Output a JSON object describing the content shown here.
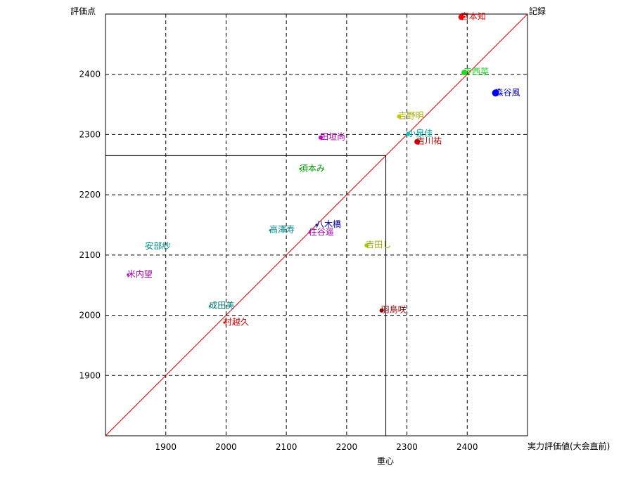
{
  "chart_data": {
    "type": "scatter",
    "ylabel": "評価点",
    "xlabel": "実力評価値(大会直前)",
    "diagonal_label": "記録",
    "center_label": "重心",
    "xlim": [
      1800,
      2500
    ],
    "ylim": [
      1800,
      2500
    ],
    "x_ticks": [
      1900,
      2000,
      2100,
      2200,
      2300,
      2400
    ],
    "y_ticks": [
      1900,
      2000,
      2100,
      2200,
      2300,
      2400
    ],
    "grid": true,
    "center": {
      "x": 2265,
      "y": 2265
    },
    "points": [
      {
        "label": "宮本知",
        "x": 2390,
        "y": 2495,
        "r": 4,
        "color": "#ff0000",
        "label_color": "#cc0000"
      },
      {
        "label": "寺西菜",
        "x": 2395,
        "y": 2403,
        "r": 4,
        "color": "#22dd22",
        "label_color": "#22cc22"
      },
      {
        "label": "森谷風",
        "x": 2447,
        "y": 2369,
        "r": 5,
        "color": "#0000ff",
        "label_color": "#0000cc"
      },
      {
        "label": "吉野明",
        "x": 2287,
        "y": 2330,
        "r": 3,
        "color": "#cccc00",
        "label_color": "#aaaa00"
      },
      {
        "label": "小泉佳",
        "x": 2302,
        "y": 2301,
        "r": 3,
        "color": "#00cccc",
        "label_color": "#00aaaa"
      },
      {
        "label": "吉川祐",
        "x": 2317,
        "y": 2288,
        "r": 4,
        "color": "#cc0000",
        "label_color": "#aa0000"
      },
      {
        "label": "田垣尚",
        "x": 2157,
        "y": 2295,
        "r": 3,
        "color": "#cc00cc",
        "label_color": "#aa00aa"
      },
      {
        "label": "須本み",
        "x": 2123,
        "y": 2243,
        "r": 1.5,
        "color": "#00aa00",
        "label_color": "#009900"
      },
      {
        "label": "八木橋",
        "x": 2150,
        "y": 2150,
        "r": 1.5,
        "color": "#0000aa",
        "label_color": "#000099"
      },
      {
        "label": "住谷遥",
        "x": 2138,
        "y": 2137,
        "r": 1.5,
        "color": "#cc00cc",
        "label_color": "#aa00aa"
      },
      {
        "label": "高澤寿",
        "x": 2073,
        "y": 2141,
        "r": 1.5,
        "color": "#009999",
        "label_color": "#008888"
      },
      {
        "label": "吉田し",
        "x": 2233,
        "y": 2116,
        "r": 3,
        "color": "#aacc00",
        "label_color": "#99aa00"
      },
      {
        "label": "安部紗",
        "x": 1867,
        "y": 2114,
        "r": 1,
        "color": "#009999",
        "label_color": "#008888"
      },
      {
        "label": "米内望",
        "x": 1837,
        "y": 2067,
        "r": 1.5,
        "color": "#aa00aa",
        "label_color": "#990099"
      },
      {
        "label": "成田美",
        "x": 1973,
        "y": 2015,
        "r": 1.5,
        "color": "#008888",
        "label_color": "#007777"
      },
      {
        "label": "羽鳥咲",
        "x": 2258,
        "y": 2008,
        "r": 3,
        "color": "#880000",
        "label_color": "#880000"
      },
      {
        "label": "村越久",
        "x": 1997,
        "y": 1988,
        "r": 1.5,
        "color": "#ff0000",
        "label_color": "#cc0000"
      }
    ]
  }
}
